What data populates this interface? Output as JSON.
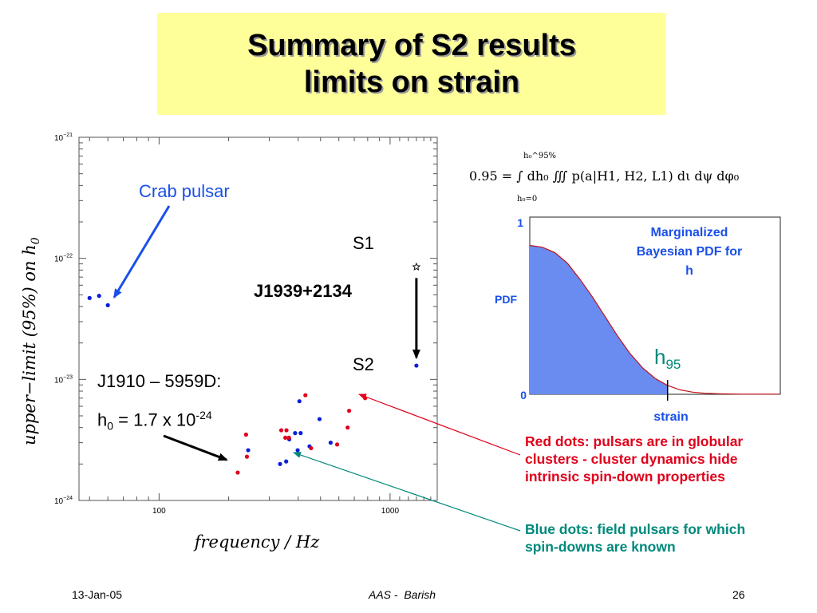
{
  "slide": {
    "title_line1": "Summary of S2 results",
    "title_line2": "limits on strain",
    "footer_date": "13-Jan-05",
    "footer_center": "AAS -  Barish",
    "footer_page": "26"
  },
  "left_plot": {
    "crab_label": "Crab pulsar",
    "s1_label": "S1",
    "s2_label": "S2",
    "j1939_label": "J1939+2134",
    "j1910_label": "J1910 – 5959D:",
    "h0_sym": "h",
    "h0_sub": "0",
    "h0_eq": " = 1.7 x 10",
    "h0_exp": "-24"
  },
  "right_plot": {
    "formula": "0.95 = ∫ dh₀ ∭ p(a|H1, H2, L1) dι dψ dφ₀",
    "upper_limit": "h₀^95%",
    "lower_limit": "h₀=0",
    "pdf_title_line1": "Marginalized",
    "pdf_title_line2": "Bayesian PDF for",
    "pdf_title_line3": "h",
    "ylabel": "PDF",
    "xlabel": "strain",
    "y_top": "1",
    "y_bottom": "0",
    "h95_sym": "h",
    "h95_sub": "95"
  },
  "notes": {
    "red_note": "Red dots: pulsars are in globular clusters - cluster dynamics hide intrinsic spin-down properties",
    "blue_note": "Blue dots: field pulsars for which spin-downs are known"
  },
  "colors": {
    "title_bg": "#ffff99",
    "red": "#e0001b",
    "blue": "#0a1fd6",
    "teal": "#00897b",
    "label_blue": "#1a50e8",
    "pdf_fill": "#6a8bf0"
  },
  "chart_data": [
    {
      "type": "scatter",
      "title": "",
      "xlabel": "frequency / Hz",
      "ylabel": "upper−limit (95%) on h",
      "ylabel_subscript": "0",
      "x_scale": "log",
      "y_scale": "log",
      "xlim": [
        45,
        1600
      ],
      "ylim": [
        1e-24,
        1e-21
      ],
      "x_ticks": [
        {
          "value": 100,
          "label": "100"
        },
        {
          "value": 1000,
          "label": "1000"
        }
      ],
      "y_ticks": [
        {
          "value": 1e-24,
          "mant": "10",
          "exp": "−24"
        },
        {
          "value": 1e-23,
          "mant": "10",
          "exp": "−23"
        },
        {
          "value": 1e-22,
          "mant": "10",
          "exp": "−22"
        },
        {
          "value": 1e-21,
          "mant": "10",
          "exp": "−21"
        }
      ],
      "series": [
        {
          "name": "Blue dots: field pulsars",
          "color": "#0a1fd6",
          "points": [
            [
              50,
              4.7e-23
            ],
            [
              55,
              4.9e-23
            ],
            [
              60,
              4.1e-23
            ],
            [
              243,
              2.6e-24
            ],
            [
              334,
              2e-24
            ],
            [
              355,
              2.1e-24
            ],
            [
              366,
              3.2e-24
            ],
            [
              388,
              3.6e-24
            ],
            [
              398,
              2.6e-24
            ],
            [
              405,
              6.6e-24
            ],
            [
              410,
              3.6e-24
            ],
            [
              448,
              2.8e-24
            ],
            [
              495,
              4.7e-24
            ],
            [
              553,
              3e-24
            ],
            [
              1300,
              1.3e-23
            ]
          ]
        },
        {
          "name": "Red dots: globular cluster pulsars",
          "color": "#e0001b",
          "points": [
            [
              219,
              1.7e-24
            ],
            [
              238,
              3.5e-24
            ],
            [
              240,
              2.3e-24
            ],
            [
              338,
              3.8e-24
            ],
            [
              352,
              3.3e-24
            ],
            [
              356,
              3.8e-24
            ],
            [
              365,
              3.3e-24
            ],
            [
              430,
              7.4e-24
            ],
            [
              455,
              2.7e-24
            ],
            [
              590,
              2.9e-24
            ],
            [
              655,
              4e-24
            ],
            [
              665,
              5.5e-24
            ],
            [
              780,
              7e-24
            ]
          ]
        }
      ],
      "annotations": {
        "S1_point": [
          1300,
          8.5e-23
        ],
        "S2_point": [
          1300,
          1.3e-23
        ]
      }
    },
    {
      "type": "area",
      "title": "Marginalized Bayesian PDF for h",
      "xlabel": "strain",
      "ylabel": "PDF",
      "ylim": [
        0,
        1
      ],
      "x": [
        0,
        0.05,
        0.1,
        0.15,
        0.2,
        0.25,
        0.3,
        0.35,
        0.4,
        0.45,
        0.5,
        0.55,
        0.6,
        0.65,
        0.7,
        0.75,
        0.8,
        0.85,
        0.9,
        0.95,
        1.0
      ],
      "values": [
        0.84,
        0.83,
        0.8,
        0.74,
        0.65,
        0.55,
        0.44,
        0.33,
        0.23,
        0.15,
        0.09,
        0.05,
        0.025,
        0.012,
        0.006,
        0.003,
        0.002,
        0.001,
        0.001,
        0.001,
        0.001
      ],
      "h95_x": 0.55
    }
  ]
}
